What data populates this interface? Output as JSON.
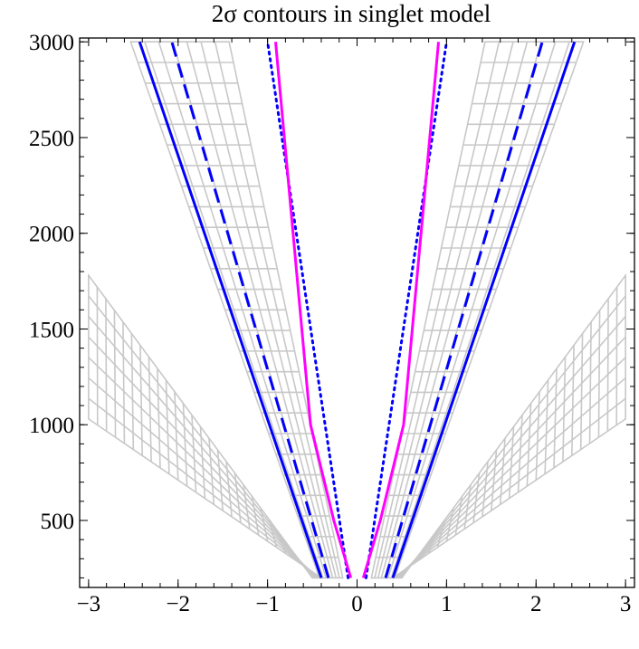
{
  "chart_data": {
    "type": "line",
    "title": "2σ contours in singlet model",
    "xlabel": "",
    "ylabel": "",
    "xlim": [
      -3.1,
      3.1
    ],
    "ylim": [
      150,
      3020
    ],
    "x_ticks": [
      -3,
      -2,
      -1,
      0,
      1,
      2,
      3
    ],
    "x_tick_labels": [
      "−3",
      "−2",
      "−1",
      "0",
      "1",
      "2",
      "3"
    ],
    "y_ticks": [
      500,
      1000,
      1500,
      2000,
      2500,
      3000
    ],
    "y_tick_labels": [
      "500",
      "1000",
      "1500",
      "2000",
      "2500",
      "3000"
    ],
    "grid": false,
    "colors": {
      "magenta": "#ff00ff",
      "blue": "#0000ff",
      "gray": "#c8c8c8"
    },
    "series": [
      {
        "style": "solid",
        "color": "#0000ff",
        "points": [
          [
            -0.4,
            200
          ],
          [
            -2.43,
            3000
          ]
        ]
      },
      {
        "style": "solid",
        "color": "#0000ff",
        "points": [
          [
            0.4,
            200
          ],
          [
            2.43,
            3000
          ]
        ]
      },
      {
        "style": "dashed",
        "color": "#0000ff",
        "points": [
          [
            -0.32,
            200
          ],
          [
            -2.07,
            3000
          ]
        ]
      },
      {
        "style": "dashed",
        "color": "#0000ff",
        "points": [
          [
            0.32,
            200
          ],
          [
            2.07,
            3000
          ]
        ]
      },
      {
        "style": "dotted",
        "color": "#0000ff",
        "points": [
          [
            -0.1,
            200
          ],
          [
            -1.0,
            3000
          ]
        ]
      },
      {
        "style": "dotted",
        "color": "#0000ff",
        "points": [
          [
            0.1,
            200
          ],
          [
            1.0,
            3000
          ]
        ]
      },
      {
        "style": "solid",
        "color": "#ff00ff",
        "points": [
          [
            -0.07,
            200
          ],
          [
            -0.26,
            500
          ],
          [
            -0.52,
            1000
          ],
          [
            -0.91,
            3000
          ]
        ]
      },
      {
        "style": "solid",
        "color": "#ff00ff",
        "points": [
          [
            0.07,
            200
          ],
          [
            0.26,
            500
          ],
          [
            0.52,
            1000
          ],
          [
            0.91,
            3000
          ]
        ]
      }
    ],
    "regions": [
      {
        "type": "mesh",
        "color": "#c8c8c8",
        "corners": [
          [
            -1.43,
            3000
          ],
          [
            -2.53,
            3000
          ],
          [
            -0.42,
            200
          ],
          [
            -0.16,
            200
          ]
        ]
      },
      {
        "type": "mesh",
        "color": "#c8c8c8",
        "corners": [
          [
            1.43,
            3000
          ],
          [
            2.53,
            3000
          ],
          [
            0.42,
            200
          ],
          [
            0.16,
            200
          ]
        ]
      },
      {
        "type": "mesh",
        "color": "#c8c8c8",
        "corners": [
          [
            -3.0,
            1780
          ],
          [
            -3.0,
            1030
          ],
          [
            -0.4,
            200
          ],
          [
            -0.5,
            200
          ]
        ]
      },
      {
        "type": "mesh",
        "color": "#c8c8c8",
        "corners": [
          [
            3.0,
            1780
          ],
          [
            3.0,
            1030
          ],
          [
            0.4,
            200
          ],
          [
            0.5,
            200
          ]
        ]
      }
    ]
  }
}
